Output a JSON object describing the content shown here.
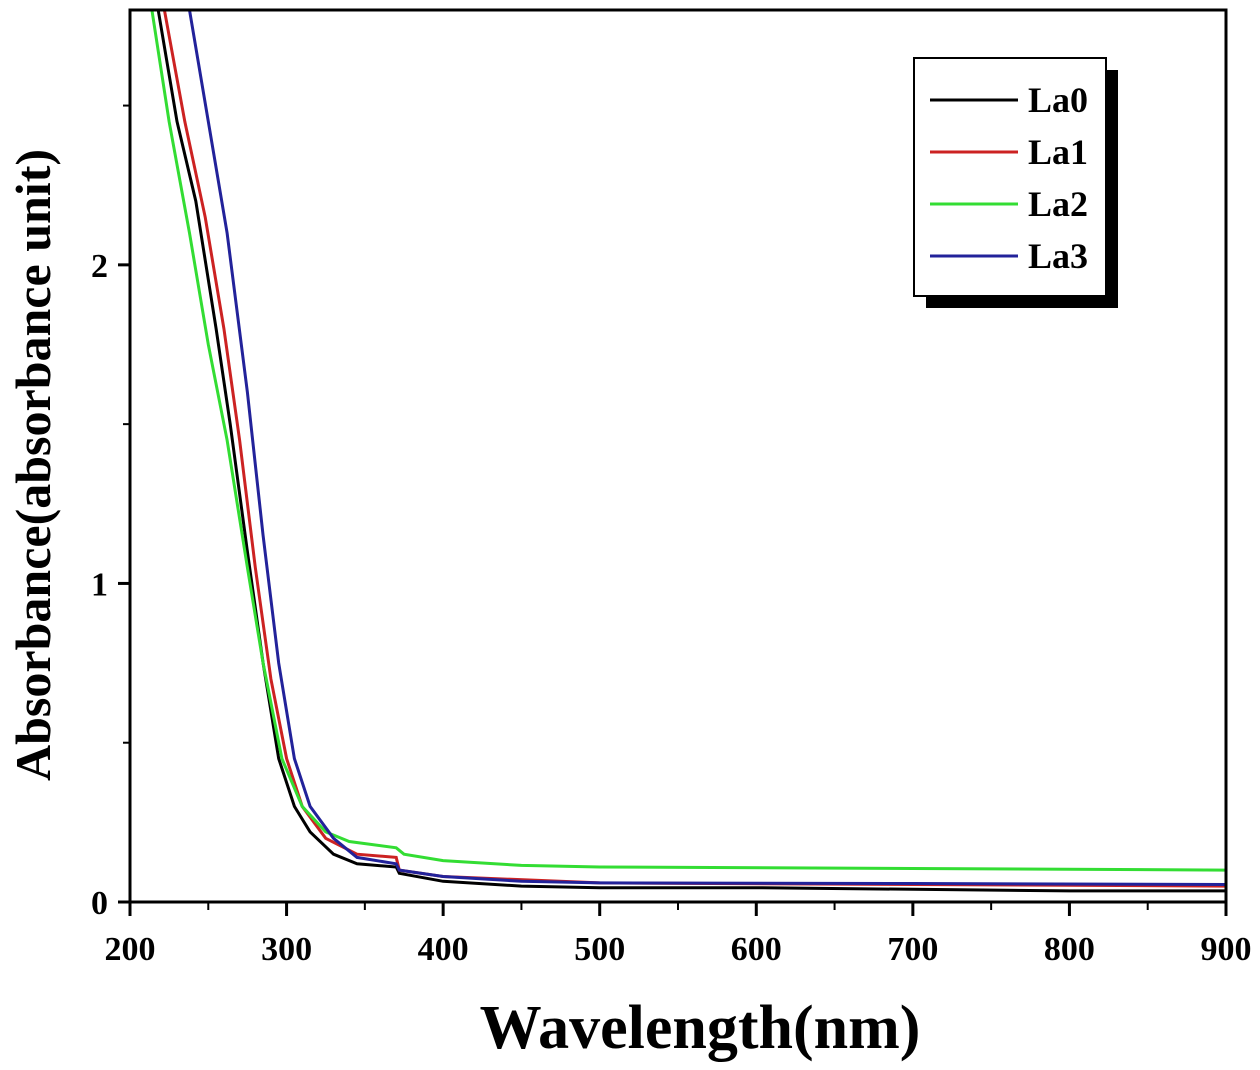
{
  "chart_data": {
    "type": "line",
    "title": "",
    "xlabel": "Wavelength(nm)",
    "ylabel": "Absorbance(absorbance unit)",
    "xlim": [
      200,
      900
    ],
    "ylim": [
      0,
      2.8
    ],
    "xticks": [
      200,
      300,
      400,
      500,
      600,
      700,
      800,
      900
    ],
    "yticks": [
      0,
      1,
      2
    ],
    "grid": false,
    "legend_position": "top-right",
    "series": [
      {
        "name": "La0",
        "color": "#000000",
        "x": [
          218,
          230,
          242,
          255,
          264,
          275,
          285,
          295,
          305,
          315,
          330,
          345,
          370,
          372,
          400,
          450,
          500,
          600,
          700,
          800,
          900
        ],
        "y": [
          2.8,
          2.45,
          2.2,
          1.8,
          1.5,
          1.1,
          0.75,
          0.45,
          0.3,
          0.22,
          0.15,
          0.12,
          0.11,
          0.09,
          0.065,
          0.05,
          0.045,
          0.045,
          0.04,
          0.035,
          0.035
        ]
      },
      {
        "name": "La1",
        "color": "#cc2222",
        "x": [
          222,
          235,
          248,
          260,
          270,
          280,
          290,
          300,
          310,
          325,
          345,
          370,
          372,
          400,
          500,
          700,
          900
        ],
        "y": [
          2.8,
          2.45,
          2.15,
          1.8,
          1.45,
          1.05,
          0.7,
          0.45,
          0.3,
          0.2,
          0.15,
          0.14,
          0.1,
          0.08,
          0.06,
          0.055,
          0.05
        ]
      },
      {
        "name": "La2",
        "color": "#33dd33",
        "x": [
          214,
          225,
          238,
          250,
          262,
          275,
          285,
          297,
          310,
          325,
          340,
          370,
          375,
          400,
          450,
          500,
          700,
          900
        ],
        "y": [
          2.8,
          2.45,
          2.1,
          1.75,
          1.45,
          1.05,
          0.75,
          0.45,
          0.3,
          0.22,
          0.19,
          0.17,
          0.15,
          0.13,
          0.115,
          0.11,
          0.105,
          0.1
        ]
      },
      {
        "name": "La3",
        "color": "#22229a",
        "x": [
          238,
          250,
          262,
          275,
          285,
          295,
          305,
          315,
          330,
          345,
          370,
          372,
          400,
          450,
          500,
          700,
          900
        ],
        "y": [
          2.8,
          2.45,
          2.1,
          1.6,
          1.15,
          0.75,
          0.45,
          0.3,
          0.2,
          0.14,
          0.12,
          0.1,
          0.08,
          0.065,
          0.06,
          0.058,
          0.055
        ]
      }
    ]
  }
}
